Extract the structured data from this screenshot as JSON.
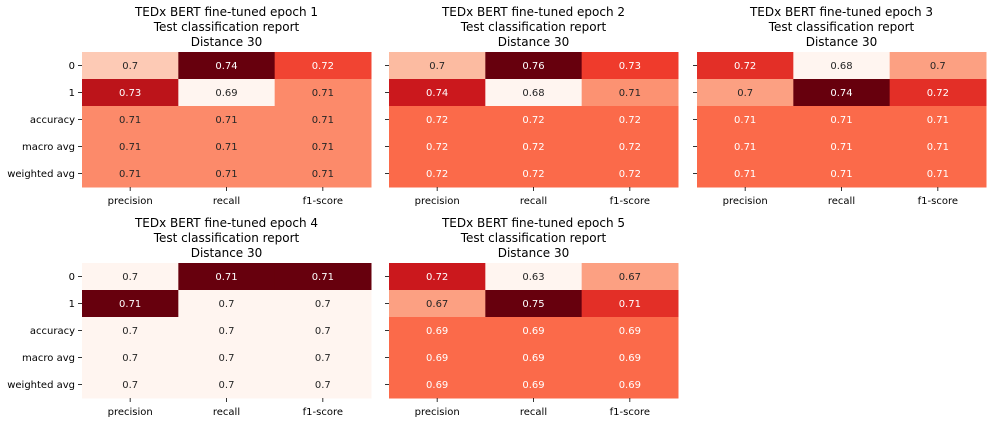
{
  "chart_data": [
    {
      "type": "heatmap",
      "title_lines": [
        "TEDx BERT fine-tuned epoch 1",
        "Test classification report",
        "Distance 30"
      ],
      "rows": [
        "0",
        "1",
        "accuracy",
        "macro avg",
        "weighted avg"
      ],
      "columns": [
        "precision",
        "recall",
        "f1-score"
      ],
      "values": [
        [
          0.7,
          0.74,
          0.72
        ],
        [
          0.73,
          0.69,
          0.71
        ],
        [
          0.71,
          0.71,
          0.71
        ],
        [
          0.71,
          0.71,
          0.71
        ],
        [
          0.71,
          0.71,
          0.71
        ]
      ],
      "colormap": "Reds",
      "colorbar": false
    },
    {
      "type": "heatmap",
      "title_lines": [
        "TEDx BERT fine-tuned epoch 2",
        "Test classification report",
        "Distance 30"
      ],
      "rows": [
        "0",
        "1",
        "accuracy",
        "macro avg",
        "weighted avg"
      ],
      "columns": [
        "precision",
        "recall",
        "f1-score"
      ],
      "values": [
        [
          0.7,
          0.76,
          0.73
        ],
        [
          0.74,
          0.68,
          0.71
        ],
        [
          0.72,
          0.72,
          0.72
        ],
        [
          0.72,
          0.72,
          0.72
        ],
        [
          0.72,
          0.72,
          0.72
        ]
      ],
      "colormap": "Reds",
      "colorbar": false
    },
    {
      "type": "heatmap",
      "title_lines": [
        "TEDx BERT fine-tuned epoch 3",
        "Test classification report",
        "Distance 30"
      ],
      "rows": [
        "0",
        "1",
        "accuracy",
        "macro avg",
        "weighted avg"
      ],
      "columns": [
        "precision",
        "recall",
        "f1-score"
      ],
      "values": [
        [
          0.72,
          0.68,
          0.7
        ],
        [
          0.7,
          0.74,
          0.72
        ],
        [
          0.71,
          0.71,
          0.71
        ],
        [
          0.71,
          0.71,
          0.71
        ],
        [
          0.71,
          0.71,
          0.71
        ]
      ],
      "colormap": "Reds",
      "colorbar": false
    },
    {
      "type": "heatmap",
      "title_lines": [
        "TEDx BERT fine-tuned epoch 4",
        "Test classification report",
        "Distance 30"
      ],
      "rows": [
        "0",
        "1",
        "accuracy",
        "macro avg",
        "weighted avg"
      ],
      "columns": [
        "precision",
        "recall",
        "f1-score"
      ],
      "values": [
        [
          0.7,
          0.71,
          0.71
        ],
        [
          0.71,
          0.7,
          0.7
        ],
        [
          0.7,
          0.7,
          0.7
        ],
        [
          0.7,
          0.7,
          0.7
        ],
        [
          0.7,
          0.7,
          0.7
        ]
      ],
      "colormap": "Reds",
      "colorbar": false
    },
    {
      "type": "heatmap",
      "title_lines": [
        "TEDx BERT fine-tuned epoch 5",
        "Test classification report",
        "Distance 30"
      ],
      "rows": [
        "0",
        "1",
        "accuracy",
        "macro avg",
        "weighted avg"
      ],
      "columns": [
        "precision",
        "recall",
        "f1-score"
      ],
      "values": [
        [
          0.72,
          0.63,
          0.67
        ],
        [
          0.67,
          0.75,
          0.71
        ],
        [
          0.69,
          0.69,
          0.69
        ],
        [
          0.69,
          0.69,
          0.69
        ],
        [
          0.69,
          0.69,
          0.69
        ]
      ],
      "colormap": "Reds",
      "colorbar": false
    }
  ],
  "colors": {
    "darkest": "#67000d",
    "lightest": "#fff5f0"
  }
}
